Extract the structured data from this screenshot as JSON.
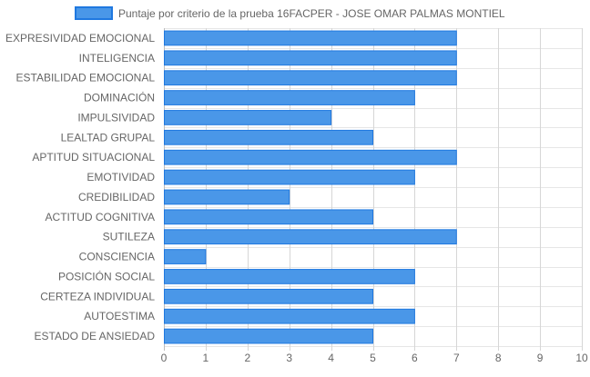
{
  "chart_data": {
    "type": "bar",
    "orientation": "horizontal",
    "categories": [
      "EXPRESIVIDAD EMOCIONAL",
      "INTELIGENCIA",
      "ESTABILIDAD EMOCIONAL",
      "DOMINACIÓN",
      "IMPULSIVIDAD",
      "LEALTAD GRUPAL",
      "APTITUD SITUACIONAL",
      "EMOTIVIDAD",
      "CREDIBILIDAD",
      "ACTITUD COGNITIVA",
      "SUTILEZA",
      "CONSCIENCIA",
      "POSICIÓN SOCIAL",
      "CERTEZA INDIVIDUAL",
      "AUTOESTIMA",
      "ESTADO DE ANSIEDAD"
    ],
    "series": [
      {
        "name": "Puntaje por criterio de la prueba 16FACPER - JOSE OMAR PALMAS MONTIEL",
        "values": [
          7,
          7,
          7,
          6,
          4,
          5,
          7,
          6,
          3,
          5,
          7,
          1,
          6,
          5,
          6,
          5
        ],
        "color": "#4a97e8",
        "border_color": "#1f78e0"
      }
    ],
    "xlim": [
      0,
      10
    ],
    "xticks": [
      "0",
      "1",
      "2",
      "3",
      "4",
      "5",
      "6",
      "7",
      "8",
      "9",
      "10"
    ],
    "grid": true,
    "legend_position": "top-center",
    "title": "",
    "xlabel": "",
    "ylabel": ""
  }
}
